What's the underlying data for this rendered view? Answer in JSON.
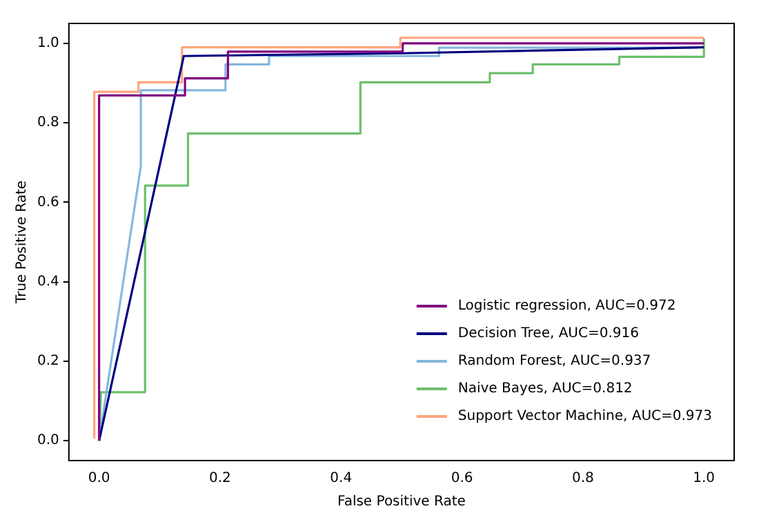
{
  "chart_data": {
    "type": "line",
    "xlabel": "False Positive Rate",
    "ylabel": "True Positive Rate",
    "xlim": [
      -0.05,
      1.05
    ],
    "ylim": [
      -0.05,
      1.05
    ],
    "xticks": [
      {
        "value": 0,
        "label": "0.0"
      },
      {
        "value": 0.2,
        "label": "0.2"
      },
      {
        "value": 0.4,
        "label": "0.4"
      },
      {
        "value": 0.6,
        "label": "0.6"
      },
      {
        "value": 0.8,
        "label": "0.8"
      },
      {
        "value": 1,
        "label": "1.0"
      }
    ],
    "yticks": [
      {
        "value": 0,
        "label": "0.0"
      },
      {
        "value": 0.2,
        "label": "0.2"
      },
      {
        "value": 0.4,
        "label": "0.4"
      },
      {
        "value": 0.6,
        "label": "0.6"
      },
      {
        "value": 0.8,
        "label": "0.8"
      },
      {
        "value": 1,
        "label": "1.0"
      }
    ],
    "grid": false,
    "legend": "bottom right",
    "series": [
      {
        "name": "Logistic regression, AUC=0.972",
        "color": "#800080",
        "x": [
          0,
          0,
          0.142,
          0.142,
          0.213,
          0.213,
          0.502,
          0.502,
          1.0
        ],
        "values": [
          0,
          0.869,
          0.869,
          0.912,
          0.912,
          0.979,
          0.979,
          1.0,
          1.0
        ]
      },
      {
        "name": "Decision Tree, AUC=0.916",
        "color": "#000080",
        "x": [
          0,
          0.14,
          0.5,
          1.0
        ],
        "values": [
          0,
          0.968,
          0.975,
          0.99
        ]
      },
      {
        "name": "Random Forest, AUC=0.937",
        "color": "#85b8dc",
        "x": [
          0,
          0.069,
          0.069,
          0.209,
          0.209,
          0.281,
          0.281,
          0.562,
          0.562,
          0.99
        ],
        "values": [
          0,
          0.691,
          0.882,
          0.882,
          0.947,
          0.947,
          0.968,
          0.968,
          0.989,
          0.989
        ]
      },
      {
        "name": "Naive Bayes, AUC=0.812",
        "color": "#6cbf6c",
        "x": [
          0,
          0.003,
          0.076,
          0.076,
          0.147,
          0.147,
          0.432,
          0.432,
          0.646,
          0.646,
          0.717,
          0.717,
          0.86,
          0.86,
          1.0,
          1.0
        ],
        "values": [
          0,
          0.122,
          0.122,
          0.642,
          0.642,
          0.773,
          0.773,
          0.902,
          0.902,
          0.925,
          0.925,
          0.947,
          0.947,
          0.966,
          0.966,
          1.012
        ]
      },
      {
        "name": "Support Vector Machine, AUC=0.973",
        "color": "#ffa67e",
        "x": [
          -0.008,
          -0.008,
          0.065,
          0.065,
          0.137,
          0.137,
          0.498,
          0.498,
          1.0
        ],
        "values": [
          0.005,
          0.878,
          0.878,
          0.902,
          0.902,
          0.99,
          0.99,
          1.014,
          1.014
        ]
      }
    ]
  }
}
